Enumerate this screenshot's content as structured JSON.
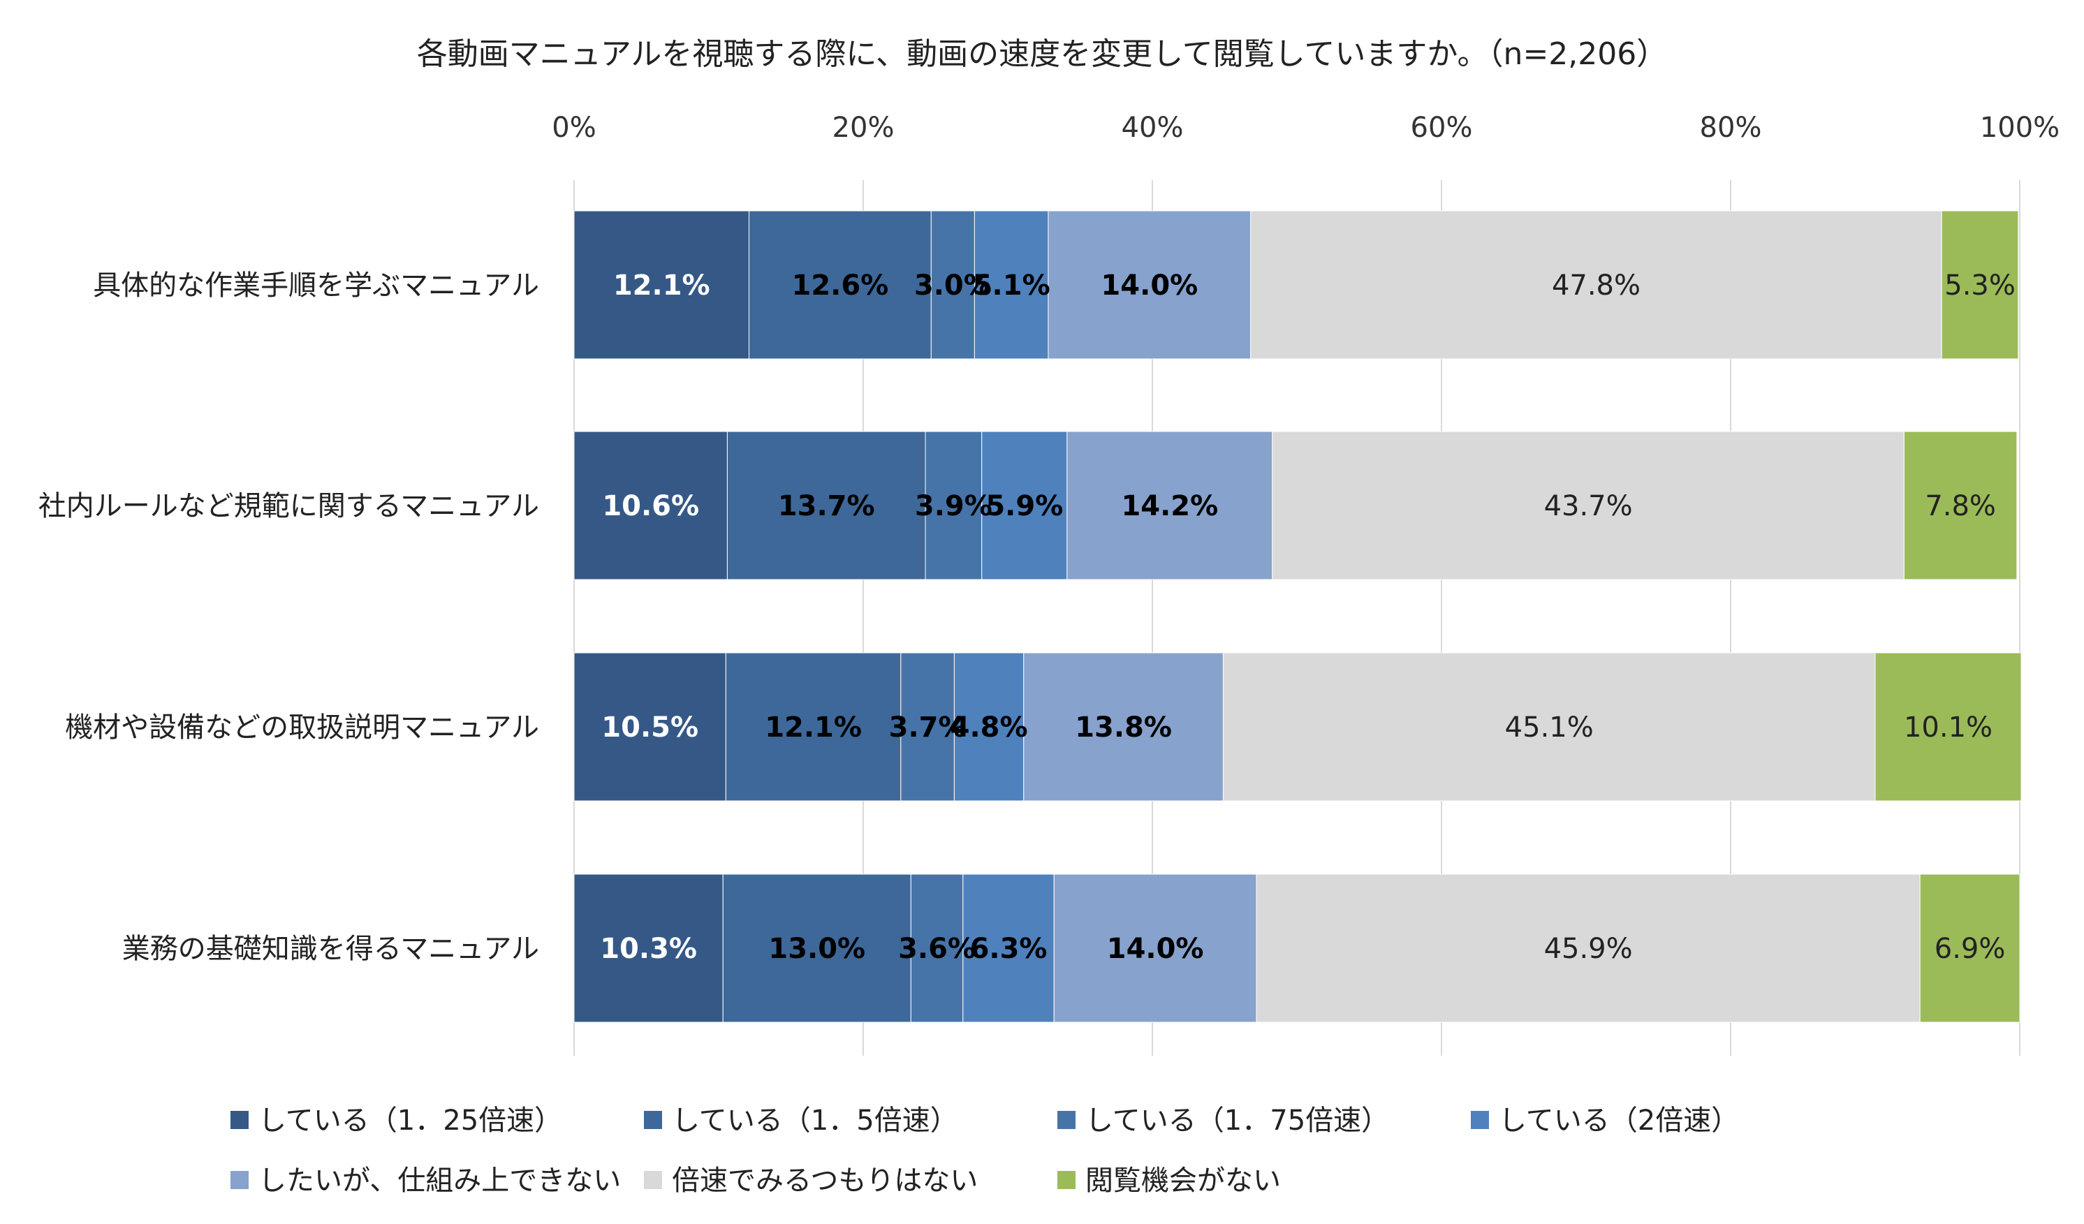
{
  "chart_data": {
    "type": "bar",
    "orientation": "horizontal",
    "stacked": "percent",
    "title": "各動画マニュアルを視聴する際に、動画の速度を変更して閲覧していますか。（n=2,206）",
    "xlim": [
      0,
      100
    ],
    "x_ticks": [
      "0%",
      "20%",
      "40%",
      "60%",
      "80%",
      "100%"
    ],
    "grid": true,
    "legend_position": "bottom",
    "categories": [
      "具体的な作業手順を学ぶマニュアル",
      "社内ルールなど規範に関するマニュアル",
      "機材や設備などの取扱説明マニュアル",
      "業務の基礎知識を得るマニュアル"
    ],
    "series": [
      {
        "name": "している（1．25倍速）",
        "color": "#355887",
        "values": [
          12.1,
          10.6,
          10.5,
          10.3
        ],
        "labels": [
          "12.1%",
          "10.6%",
          "10.5%",
          "10.3%"
        ]
      },
      {
        "name": "している（1．5倍速）",
        "color": "#3e6899",
        "values": [
          12.6,
          13.7,
          12.1,
          13.0
        ],
        "labels": [
          "12.6%",
          "13.7%",
          "12.1%",
          "13.0%"
        ]
      },
      {
        "name": "している（1．75倍速）",
        "color": "#4774a8",
        "values": [
          3.0,
          3.9,
          3.7,
          3.6
        ],
        "labels": [
          "3.0%",
          "3.9%",
          "3.7%",
          "3.6%"
        ]
      },
      {
        "name": "している（2倍速）",
        "color": "#4f81bd",
        "values": [
          5.1,
          5.9,
          4.8,
          6.3
        ],
        "labels": [
          "5.1%",
          "5.9%",
          "4.8%",
          "6.3%"
        ]
      },
      {
        "name": "したいが、仕組み上できない",
        "color": "#87a2cc",
        "values": [
          14.0,
          14.2,
          13.8,
          14.0
        ],
        "labels": [
          "14.0%",
          "14.2%",
          "13.8%",
          "14.0%"
        ]
      },
      {
        "name": "倍速でみるつもりはない",
        "color": "#d9d9d9",
        "values": [
          47.8,
          43.7,
          45.1,
          45.9
        ],
        "labels": [
          "47.8%",
          "43.7%",
          "45.1%",
          "45.9%"
        ]
      },
      {
        "name": "閲覧機会がない",
        "color": "#9bbb59",
        "values": [
          5.3,
          7.8,
          10.1,
          6.9
        ],
        "labels": [
          "5.3%",
          "7.8%",
          "10.1%",
          "6.9%"
        ]
      }
    ],
    "label_colors": [
      "#ffffff",
      "#000000",
      "#000000",
      "#000000",
      "#000000",
      "#222222",
      "#222222"
    ],
    "label_bold": [
      true,
      true,
      true,
      true,
      true,
      false,
      false
    ]
  }
}
